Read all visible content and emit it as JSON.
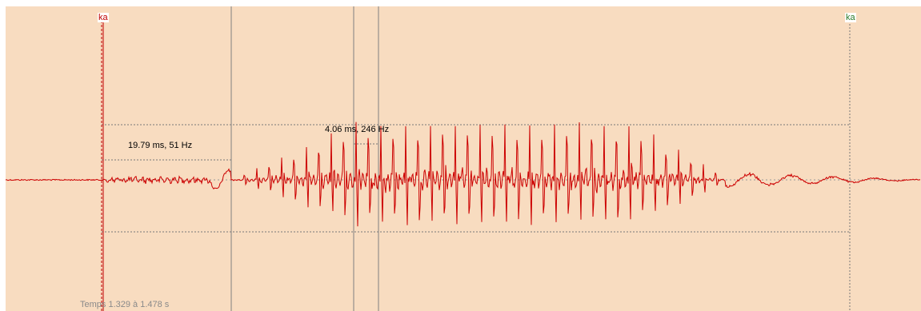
{
  "markers": {
    "start_label": "ka",
    "end_label": "ka"
  },
  "measurements": {
    "period_long": "19.79 ms, 51 Hz",
    "period_short": "4.06 ms, 246 Hz"
  },
  "status": {
    "time_range": "Temps 1.329 à 1.478 s"
  },
  "colors": {
    "background": "#f8dcc0",
    "waveform": "#cc0000",
    "start_marker": "#c00000",
    "end_marker": "#2a7a2a",
    "cursor": "#808080",
    "guide": "#777777"
  }
}
